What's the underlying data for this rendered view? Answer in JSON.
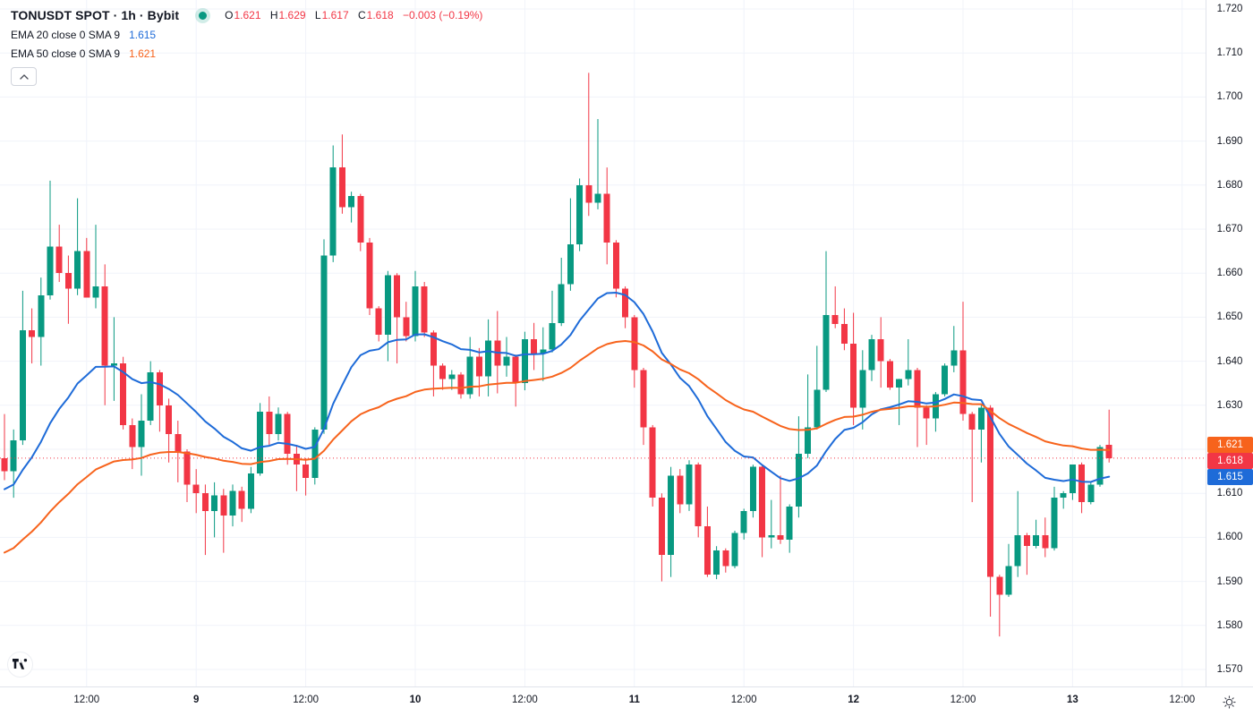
{
  "header": {
    "symbol_title": "TONUSDT SPOT · 1h · Bybit",
    "ohlc": {
      "o_label": "O",
      "o_value": "1.621",
      "h_label": "H",
      "h_value": "1.629",
      "l_label": "L",
      "l_value": "1.617",
      "c_label": "C",
      "c_value": "1.618",
      "change": "−0.003 (−0.19%)"
    },
    "indicators": [
      {
        "label": "EMA 20 close 0 SMA 9",
        "value": "1.615",
        "color": "#1E6BD8"
      },
      {
        "label": "EMA 50 close 0 SMA 9",
        "value": "1.621",
        "color": "#F7631C"
      }
    ]
  },
  "colors": {
    "up": "#089981",
    "down": "#F23645",
    "ema20": "#1E6BD8",
    "ema50": "#F7631C",
    "grid": "#F0F3FA",
    "axis_border": "#E0E3EB",
    "text": "#131722",
    "last_price": "#F23645"
  },
  "chart_data": {
    "type": "candlestick",
    "title": "TONUSDT SPOT · 1h · Bybit",
    "ylim": [
      1.57,
      1.72
    ],
    "price_step": 0.01,
    "price_labels": [
      "1.720",
      "1.710",
      "1.700",
      "1.690",
      "1.680",
      "1.670",
      "1.660",
      "1.650",
      "1.640",
      "1.630",
      "1.620",
      "1.610",
      "1.600",
      "1.590",
      "1.580",
      "1.570"
    ],
    "time_ticks": [
      {
        "bar": 9,
        "label": "12:00",
        "major": false
      },
      {
        "bar": 21,
        "label": "9",
        "major": true
      },
      {
        "bar": 33,
        "label": "12:00",
        "major": false
      },
      {
        "bar": 45,
        "label": "10",
        "major": true
      },
      {
        "bar": 57,
        "label": "12:00",
        "major": false
      },
      {
        "bar": 69,
        "label": "11",
        "major": true
      },
      {
        "bar": 81,
        "label": "12:00",
        "major": false
      },
      {
        "bar": 93,
        "label": "12",
        "major": true
      },
      {
        "bar": 105,
        "label": "12:00",
        "major": false
      },
      {
        "bar": 117,
        "label": "13",
        "major": true
      },
      {
        "bar": 129,
        "label": "12:00",
        "major": false
      }
    ],
    "candles": [
      [
        1.618,
        1.628,
        1.613,
        1.615
      ],
      [
        1.615,
        1.6245,
        1.609,
        1.622
      ],
      [
        1.622,
        1.656,
        1.621,
        1.647
      ],
      [
        1.647,
        1.652,
        1.6395,
        1.6455
      ],
      [
        1.6455,
        1.659,
        1.639,
        1.655
      ],
      [
        1.655,
        1.681,
        1.654,
        1.666
      ],
      [
        1.666,
        1.671,
        1.658,
        1.66
      ],
      [
        1.66,
        1.664,
        1.6485,
        1.6565
      ],
      [
        1.6565,
        1.677,
        1.655,
        1.665
      ],
      [
        1.665,
        1.668,
        1.656,
        1.6545
      ],
      [
        1.6545,
        1.671,
        1.652,
        1.657
      ],
      [
        1.657,
        1.662,
        1.63,
        1.639
      ],
      [
        1.639,
        1.65,
        1.631,
        1.6395
      ],
      [
        1.6395,
        1.641,
        1.6245,
        1.6255
      ],
      [
        1.6255,
        1.627,
        1.6155,
        1.6205
      ],
      [
        1.6205,
        1.6325,
        1.614,
        1.6265
      ],
      [
        1.6265,
        1.64,
        1.6255,
        1.6375
      ],
      [
        1.6375,
        1.638,
        1.624,
        1.63
      ],
      [
        1.63,
        1.6315,
        1.617,
        1.6235
      ],
      [
        1.6235,
        1.6265,
        1.6125,
        1.6195
      ],
      [
        1.6195,
        1.62,
        1.608,
        1.612
      ],
      [
        1.612,
        1.6155,
        1.6055,
        1.61
      ],
      [
        1.61,
        1.612,
        1.596,
        1.606
      ],
      [
        1.606,
        1.6125,
        1.6,
        1.6095
      ],
      [
        1.6095,
        1.611,
        1.5965,
        1.605
      ],
      [
        1.605,
        1.612,
        1.6025,
        1.6105
      ],
      [
        1.6105,
        1.6115,
        1.6035,
        1.6065
      ],
      [
        1.6065,
        1.616,
        1.6055,
        1.6145
      ],
      [
        1.6145,
        1.6305,
        1.614,
        1.6285
      ],
      [
        1.6285,
        1.632,
        1.621,
        1.6235
      ],
      [
        1.6235,
        1.6295,
        1.622,
        1.628
      ],
      [
        1.628,
        1.6285,
        1.6165,
        1.619
      ],
      [
        1.619,
        1.621,
        1.6105,
        1.6165
      ],
      [
        1.6165,
        1.618,
        1.6095,
        1.6135
      ],
      [
        1.6135,
        1.625,
        1.612,
        1.6245
      ],
      [
        1.6245,
        1.6677,
        1.6235,
        1.664
      ],
      [
        1.664,
        1.689,
        1.6625,
        1.684
      ],
      [
        1.684,
        1.6915,
        1.6735,
        1.675
      ],
      [
        1.675,
        1.6785,
        1.6715,
        1.6775
      ],
      [
        1.6775,
        1.678,
        1.665,
        1.667
      ],
      [
        1.667,
        1.668,
        1.6505,
        1.652
      ],
      [
        1.652,
        1.6525,
        1.6445,
        1.646
      ],
      [
        1.646,
        1.6605,
        1.64,
        1.6595
      ],
      [
        1.6595,
        1.66,
        1.6395,
        1.65
      ],
      [
        1.65,
        1.6535,
        1.6445,
        1.6457
      ],
      [
        1.6457,
        1.6605,
        1.6445,
        1.657
      ],
      [
        1.657,
        1.658,
        1.6455,
        1.6465
      ],
      [
        1.6465,
        1.647,
        1.632,
        1.639
      ],
      [
        1.639,
        1.6395,
        1.6335,
        1.636
      ],
      [
        1.636,
        1.638,
        1.6335,
        1.637
      ],
      [
        1.637,
        1.6375,
        1.6315,
        1.6325
      ],
      [
        1.6325,
        1.6455,
        1.6315,
        1.641
      ],
      [
        1.641,
        1.643,
        1.632,
        1.6366
      ],
      [
        1.6366,
        1.6495,
        1.632,
        1.6447
      ],
      [
        1.6447,
        1.6514,
        1.6327,
        1.639
      ],
      [
        1.639,
        1.6455,
        1.6365,
        1.641
      ],
      [
        1.641,
        1.6415,
        1.6297,
        1.635
      ],
      [
        1.635,
        1.6467,
        1.6334,
        1.645
      ],
      [
        1.645,
        1.6487,
        1.638,
        1.6417
      ],
      [
        1.6417,
        1.6477,
        1.6355,
        1.6427
      ],
      [
        1.6427,
        1.656,
        1.642,
        1.6487
      ],
      [
        1.6487,
        1.6635,
        1.648,
        1.6575
      ],
      [
        1.6575,
        1.677,
        1.656,
        1.6665
      ],
      [
        1.6665,
        1.6815,
        1.665,
        1.68
      ],
      [
        1.68,
        1.7055,
        1.673,
        1.676
      ],
      [
        1.676,
        1.695,
        1.6745,
        1.678
      ],
      [
        1.678,
        1.684,
        1.662,
        1.667
      ],
      [
        1.667,
        1.6675,
        1.6545,
        1.6565
      ],
      [
        1.6565,
        1.657,
        1.6475,
        1.65
      ],
      [
        1.65,
        1.6505,
        1.634,
        1.638
      ],
      [
        1.638,
        1.6385,
        1.621,
        1.625
      ],
      [
        1.625,
        1.6255,
        1.607,
        1.609
      ],
      [
        1.609,
        1.61,
        1.59,
        1.596
      ],
      [
        1.596,
        1.616,
        1.591,
        1.614
      ],
      [
        1.614,
        1.6155,
        1.6055,
        1.6075
      ],
      [
        1.6075,
        1.6175,
        1.606,
        1.6165
      ],
      [
        1.6165,
        1.617,
        1.6,
        1.6025
      ],
      [
        1.6025,
        1.607,
        1.591,
        1.5915
      ],
      [
        1.5915,
        1.598,
        1.5905,
        1.597
      ],
      [
        1.597,
        1.5975,
        1.592,
        1.5935
      ],
      [
        1.5935,
        1.6015,
        1.593,
        1.601
      ],
      [
        1.601,
        1.6065,
        1.5995,
        1.606
      ],
      [
        1.606,
        1.6165,
        1.6045,
        1.616
      ],
      [
        1.616,
        1.6165,
        1.5955,
        1.6
      ],
      [
        1.6,
        1.6085,
        1.5975,
        1.6005
      ],
      [
        1.6005,
        1.614,
        1.5985,
        1.5995
      ],
      [
        1.5995,
        1.6075,
        1.5965,
        1.607
      ],
      [
        1.607,
        1.6275,
        1.6045,
        1.619
      ],
      [
        1.619,
        1.637,
        1.618,
        1.625
      ],
      [
        1.625,
        1.6435,
        1.6245,
        1.6335
      ],
      [
        1.6335,
        1.665,
        1.633,
        1.6505
      ],
      [
        1.6505,
        1.657,
        1.6475,
        1.6485
      ],
      [
        1.6485,
        1.652,
        1.6425,
        1.644
      ],
      [
        1.644,
        1.651,
        1.6255,
        1.6295
      ],
      [
        1.6295,
        1.6425,
        1.6245,
        1.638
      ],
      [
        1.638,
        1.646,
        1.6355,
        1.645
      ],
      [
        1.645,
        1.65,
        1.634,
        1.64
      ],
      [
        1.64,
        1.6405,
        1.6335,
        1.634
      ],
      [
        1.634,
        1.636,
        1.6255,
        1.636
      ],
      [
        1.636,
        1.645,
        1.6345,
        1.638
      ],
      [
        1.638,
        1.6385,
        1.6205,
        1.6295
      ],
      [
        1.6295,
        1.63,
        1.621,
        1.627
      ],
      [
        1.627,
        1.633,
        1.624,
        1.6325
      ],
      [
        1.6325,
        1.6395,
        1.632,
        1.639
      ],
      [
        1.639,
        1.648,
        1.6375,
        1.6425
      ],
      [
        1.6425,
        1.6535,
        1.6265,
        1.628
      ],
      [
        1.628,
        1.6285,
        1.608,
        1.6245
      ],
      [
        1.6245,
        1.63,
        1.617,
        1.6295
      ],
      [
        1.6295,
        1.63,
        1.582,
        1.591
      ],
      [
        1.591,
        1.5915,
        1.5775,
        1.587
      ],
      [
        1.587,
        1.5985,
        1.5865,
        1.5935
      ],
      [
        1.5935,
        1.6105,
        1.591,
        1.6005
      ],
      [
        1.6005,
        1.601,
        1.5915,
        1.598
      ],
      [
        1.598,
        1.604,
        1.5975,
        1.6005
      ],
      [
        1.6005,
        1.6045,
        1.5955,
        1.5975
      ],
      [
        1.5975,
        1.6115,
        1.597,
        1.609
      ],
      [
        1.609,
        1.6105,
        1.6065,
        1.61
      ],
      [
        1.61,
        1.6165,
        1.6085,
        1.6165
      ],
      [
        1.6165,
        1.617,
        1.6055,
        1.608
      ],
      [
        1.608,
        1.6125,
        1.6075,
        1.612
      ],
      [
        1.612,
        1.621,
        1.6115,
        1.6205
      ],
      [
        1.621,
        1.629,
        1.617,
        1.618
      ]
    ],
    "overlays": [
      {
        "name": "EMA 20",
        "period": 20,
        "seed": 1.6105,
        "color": "#1E6BD8"
      },
      {
        "name": "EMA 50",
        "period": 50,
        "seed": 1.5958,
        "color": "#F7631C"
      }
    ],
    "last_price": {
      "value": 1.618,
      "color": "#F23645"
    },
    "axis_tags": [
      {
        "text": "1.621",
        "price": 1.621,
        "color": "#F7631C"
      },
      {
        "text": "1.618",
        "price": 1.618,
        "color": "#F23645"
      },
      {
        "text": "1.615",
        "price": 1.615,
        "color": "#1E6BD8"
      }
    ]
  }
}
